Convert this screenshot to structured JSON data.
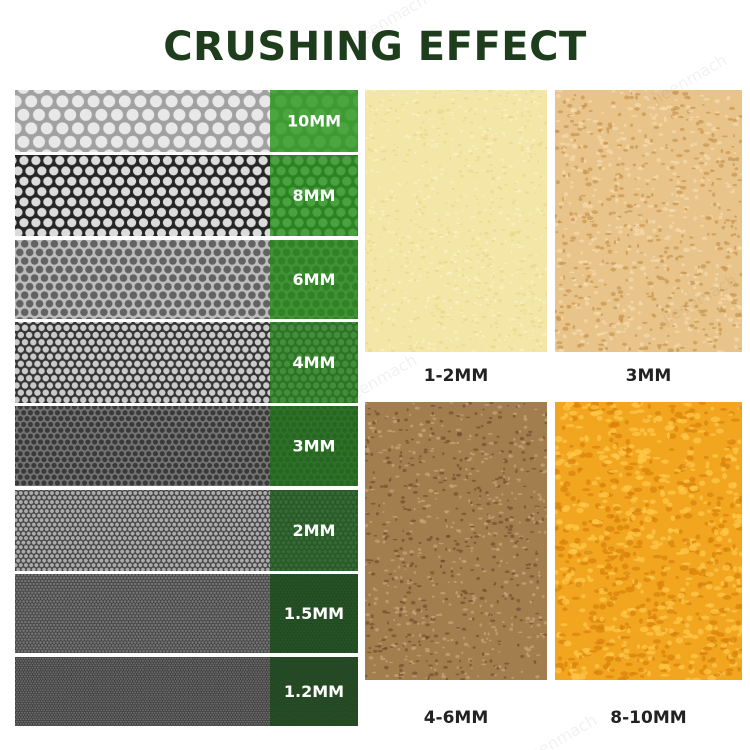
{
  "header": {
    "title": "CRUSHING EFFECT"
  },
  "watermark": "jieenmach",
  "screens": [
    {
      "label": "10MM"
    },
    {
      "label": "8MM"
    },
    {
      "label": "6MM"
    },
    {
      "label": "4MM"
    },
    {
      "label": "3MM"
    },
    {
      "label": "2MM"
    },
    {
      "label": "1.5MM"
    },
    {
      "label": "1.2MM"
    }
  ],
  "samples": [
    {
      "label": "1-2MM"
    },
    {
      "label": "3MM"
    },
    {
      "label": "4-6MM"
    },
    {
      "label": "8-10MM"
    }
  ]
}
